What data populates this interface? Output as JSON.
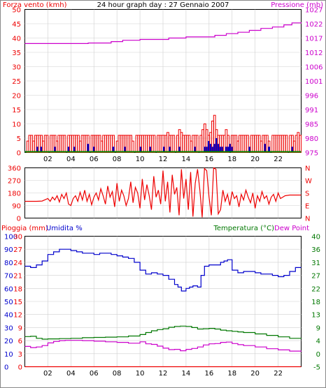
{
  "colors": {
    "wind": "#ee0000",
    "gust": "#ee0000",
    "wind_avg": "#0000cc",
    "pressure": "#cc00cc",
    "humidity": "#0000cc",
    "rain": "#ee0000",
    "temperature": "#007700",
    "dewpoint": "#cc00cc",
    "ground": "#008800",
    "grid": "#000000",
    "axis_text": "#000000"
  },
  "chart_data": [
    {
      "type": "bar",
      "title": "24 hour graph day : 27 Gennaio 2007",
      "left_label": "Forza vento (kmh)",
      "right_label": "Pressione (mb)",
      "x_ticks": [
        "02",
        "04",
        "06",
        "08",
        "10",
        "12",
        "14",
        "16",
        "18",
        "20",
        "22"
      ],
      "y_ticks_left": [
        "50",
        "45",
        "40",
        "35",
        "30",
        "25",
        "20",
        "15",
        "10",
        "5",
        "0"
      ],
      "y_ticks_right": [
        "1027",
        "1022",
        "1017",
        "1012",
        "1006",
        "1001",
        "996",
        "991",
        "985",
        "980",
        "975"
      ],
      "ylim_left": [
        0,
        50
      ],
      "ylim_right": [
        975,
        1027
      ],
      "x_range": [
        0,
        24
      ],
      "series": [
        {
          "name": "Pressione",
          "kind": "step",
          "x": [
            0,
            4.5,
            5.5,
            7.5,
            8.5,
            10,
            12.5,
            14,
            16.5,
            17.5,
            18.5,
            19.5,
            20.5,
            21.5,
            22.5,
            23.2,
            24
          ],
          "values": [
            1014.6,
            1014.6,
            1014.8,
            1015.3,
            1015.8,
            1016.1,
            1016.6,
            1017.0,
            1017.6,
            1018.2,
            1018.7,
            1019.4,
            1020.1,
            1020.6,
            1021.4,
            1022.1,
            1022.3
          ]
        }
      ],
      "gust_values": [
        0,
        4,
        6,
        6,
        4,
        6,
        6,
        6,
        6,
        4,
        6,
        6,
        0,
        6,
        6,
        6,
        4,
        6,
        6,
        6,
        6,
        0,
        6,
        6,
        6,
        6,
        6,
        6,
        4,
        6,
        6,
        6,
        6,
        0,
        6,
        6,
        6,
        6,
        6,
        4,
        6,
        6,
        6,
        6,
        6,
        6,
        0,
        4,
        6,
        6,
        6,
        6,
        6,
        6,
        6,
        4,
        0,
        6,
        6,
        6,
        6,
        6,
        6,
        6,
        6,
        6,
        6,
        0,
        6,
        6,
        6,
        6,
        6,
        7,
        6,
        6,
        6,
        0,
        6,
        8,
        7,
        6,
        6,
        6,
        6,
        4,
        6,
        6,
        6,
        0,
        6,
        8,
        10,
        8,
        6,
        7,
        11,
        13,
        8,
        6,
        6,
        6,
        6,
        8,
        6,
        0,
        6,
        6,
        6,
        4,
        6,
        6,
        6,
        6,
        6,
        0,
        6,
        6,
        6,
        6,
        6,
        4,
        6,
        6,
        6,
        4,
        0,
        6,
        6,
        6,
        6,
        6,
        6,
        6,
        6,
        0,
        6,
        6,
        4,
        6,
        7,
        6
      ],
      "wind_values": [
        0,
        0,
        0,
        0,
        0,
        0,
        2,
        0,
        2,
        0,
        0,
        0,
        0,
        0,
        0,
        2,
        0,
        0,
        0,
        0,
        0,
        0,
        2,
        0,
        0,
        2,
        0,
        0,
        0,
        0,
        0,
        0,
        3,
        0,
        0,
        2,
        0,
        0,
        0,
        0,
        0,
        0,
        0,
        0,
        0,
        2,
        0,
        0,
        0,
        0,
        0,
        2,
        0,
        0,
        0,
        0,
        0,
        0,
        0,
        2,
        0,
        0,
        0,
        0,
        2,
        0,
        0,
        0,
        0,
        0,
        0,
        2,
        0,
        0,
        2,
        0,
        0,
        0,
        0,
        2,
        0,
        0,
        0,
        0,
        0,
        0,
        0,
        2,
        0,
        0,
        0,
        0,
        2,
        2,
        4,
        3,
        2,
        3,
        5,
        3,
        2,
        2,
        0,
        2,
        2,
        3,
        2,
        0,
        0,
        0,
        0,
        0,
        0,
        0,
        0,
        2,
        0,
        0,
        0,
        0,
        0,
        0,
        0,
        3,
        0,
        2,
        0,
        0,
        0,
        0,
        0,
        0,
        0,
        0,
        0,
        0,
        0,
        2,
        0,
        0,
        0,
        0,
        0
      ]
    },
    {
      "type": "line",
      "left_label": "",
      "right_label_letters": [
        "N",
        "W",
        "S",
        "E",
        "N"
      ],
      "y_ticks_left": [
        "360",
        "270",
        "180",
        "90",
        "0"
      ],
      "ylim": [
        0,
        360
      ],
      "x_range": [
        0,
        24
      ],
      "series": [
        {
          "name": "Direzione vento",
          "x": [
            0,
            0.5,
            1,
            1.5,
            2,
            2.2,
            2.4,
            2.6,
            2.8,
            3,
            3.2,
            3.4,
            3.6,
            3.8,
            4,
            4.2,
            4.4,
            4.6,
            4.8,
            5,
            5.2,
            5.4,
            5.6,
            5.8,
            6,
            6.2,
            6.4,
            6.6,
            6.8,
            7,
            7.2,
            7.4,
            7.6,
            7.8,
            8,
            8.2,
            8.4,
            8.6,
            8.8,
            9,
            9.2,
            9.4,
            9.6,
            9.8,
            10,
            10.2,
            10.4,
            10.6,
            10.8,
            11,
            11.2,
            11.4,
            11.6,
            11.8,
            12,
            12.2,
            12.4,
            12.6,
            12.8,
            13,
            13.2,
            13.4,
            13.6,
            13.8,
            14,
            14.2,
            14.4,
            14.6,
            14.8,
            15,
            15.2,
            15.4,
            15.6,
            15.8,
            16,
            16.2,
            16.4,
            16.6,
            16.8,
            17,
            17.2,
            17.4,
            17.6,
            17.8,
            18,
            18.2,
            18.4,
            18.6,
            18.8,
            19,
            19.2,
            19.4,
            19.6,
            19.8,
            20,
            20.2,
            20.4,
            20.6,
            20.8,
            21,
            21.2,
            21.4,
            21.6,
            21.8,
            22,
            22.2,
            22.4,
            22.6,
            23,
            23.5,
            24
          ],
          "values": [
            120,
            120,
            120,
            122,
            140,
            120,
            150,
            130,
            160,
            115,
            170,
            140,
            180,
            100,
            90,
            140,
            160,
            120,
            185,
            130,
            200,
            120,
            170,
            95,
            150,
            180,
            130,
            210,
            160,
            100,
            230,
            150,
            190,
            80,
            250,
            120,
            200,
            160,
            90,
            140,
            260,
            110,
            220,
            180,
            70,
            280,
            130,
            240,
            160,
            60,
            300,
            150,
            200,
            100,
            340,
            120,
            260,
            40,
            310,
            170,
            220,
            20,
            350,
            140,
            280,
            60,
            330,
            10,
            250,
            350,
            200,
            5,
            355,
            340,
            150,
            20,
            360,
            350,
            30,
            60,
            200,
            120,
            170,
            90,
            190,
            140,
            160,
            80,
            170,
            130,
            200,
            150,
            110,
            180,
            70,
            160,
            120,
            190,
            140,
            160,
            100,
            150,
            170,
            120,
            180,
            140,
            150,
            160,
            165,
            165,
            165
          ]
        }
      ]
    },
    {
      "type": "line",
      "left_label": "Pioggia (mm)",
      "left_label_2": "Umidita %",
      "right_label": "Temperatura (°C)",
      "right_label_2": "Dew Point",
      "x_ticks": [
        "02",
        "04",
        "06",
        "08",
        "10",
        "12",
        "14",
        "16",
        "18",
        "20",
        "22"
      ],
      "y_ticks_rain": [
        "30",
        "27",
        "24",
        "21",
        "18",
        "15",
        "12",
        "9",
        "6",
        "3",
        "0"
      ],
      "y_ticks_humidity": [
        "100",
        "90",
        "80",
        "70",
        "60",
        "50",
        "40",
        "30",
        "20",
        "10",
        "0"
      ],
      "y_ticks_temp": [
        "40",
        "36",
        "31",
        "27",
        "22",
        "18",
        "13",
        "9",
        "4",
        "0",
        "-5"
      ],
      "ylim_humidity": [
        0,
        100
      ],
      "ylim_temp": [
        -5,
        40
      ],
      "x_range": [
        0,
        24
      ],
      "series": [
        {
          "name": "Umidita %",
          "x": [
            0,
            0.5,
            1,
            1.5,
            2,
            2.5,
            3,
            3.5,
            4,
            4.5,
            5,
            5.5,
            6,
            6.5,
            7,
            7.5,
            8,
            8.5,
            9,
            9.5,
            10,
            10.5,
            11,
            11.5,
            12,
            12.5,
            13,
            13.3,
            13.6,
            14,
            14.3,
            14.6,
            15,
            15.3,
            15.6,
            16,
            16.5,
            17,
            17.3,
            17.6,
            18,
            18.5,
            19,
            19.5,
            20,
            20.5,
            21,
            21.5,
            22,
            22.5,
            23,
            23.5,
            24
          ],
          "values": [
            77,
            76,
            78,
            81,
            86,
            88,
            90,
            90,
            89,
            88,
            87,
            87,
            86,
            87,
            87,
            86,
            85,
            84,
            83,
            80,
            74,
            71,
            72,
            71,
            70,
            67,
            63,
            61,
            58,
            60,
            61,
            62,
            61,
            70,
            77,
            78,
            78,
            80,
            81,
            82,
            74,
            72,
            73,
            73,
            72,
            71,
            71,
            70,
            69,
            70,
            73,
            76,
            76
          ]
        },
        {
          "name": "Pioggia (mm)",
          "x": [
            0,
            24
          ],
          "values": [
            0,
            0
          ]
        },
        {
          "name": "Temperatura (°C)",
          "x": [
            0,
            0.5,
            1,
            1.5,
            2,
            3,
            4,
            5,
            6,
            7,
            8,
            9,
            10,
            10.5,
            11,
            11.5,
            12,
            12.5,
            13,
            13.5,
            14,
            14.5,
            15,
            15.5,
            16,
            16.5,
            17,
            17.5,
            18,
            18.5,
            19,
            20,
            21,
            22,
            23,
            24
          ],
          "values": [
            5.4,
            5.5,
            4.8,
            4.5,
            4.6,
            4.7,
            4.8,
            5.0,
            5.1,
            5.2,
            5.3,
            5.6,
            6.1,
            6.8,
            7.4,
            7.8,
            8.1,
            8.6,
            8.9,
            9.0,
            8.9,
            8.5,
            8.0,
            8.1,
            8.2,
            8.0,
            7.6,
            7.4,
            7.2,
            7.0,
            6.8,
            6.3,
            5.8,
            5.3,
            4.8,
            4.7
          ]
        },
        {
          "name": "Dew Point",
          "x": [
            0,
            0.5,
            1,
            1.5,
            2,
            2.5,
            3,
            3.5,
            4,
            5,
            6,
            7,
            8,
            9,
            10,
            10.5,
            11,
            11.5,
            12,
            12.5,
            13,
            13.5,
            14,
            14.5,
            15,
            15.5,
            16,
            16.5,
            17,
            17.5,
            18,
            18.5,
            19,
            20,
            21,
            22,
            23,
            24
          ],
          "values": [
            2.0,
            1.6,
            1.8,
            2.3,
            3.2,
            3.7,
            4.0,
            4.1,
            4.1,
            4.0,
            3.8,
            3.6,
            3.4,
            3.1,
            3.6,
            2.9,
            2.7,
            2.1,
            1.4,
            0.9,
            1.0,
            0.5,
            1.0,
            1.3,
            1.8,
            2.5,
            2.9,
            3.0,
            3.4,
            3.5,
            3.0,
            2.6,
            2.3,
            1.8,
            1.2,
            0.8,
            0.4,
            0.5
          ]
        }
      ]
    }
  ]
}
